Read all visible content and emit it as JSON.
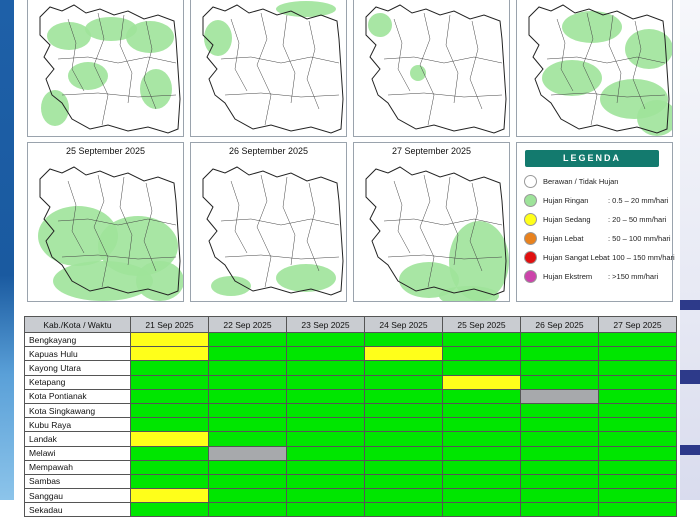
{
  "colors": {
    "ringan": "#00e600",
    "sedang": "#ffff1a",
    "lebat": "#e8821e",
    "sangat_lebat": "#e01010",
    "ekstrem": "#cc44aa",
    "berawan": "#a7a9ac",
    "legend_header": "#137a6e"
  },
  "maps": [
    {
      "title": ""
    },
    {
      "title": ""
    },
    {
      "title": ""
    },
    {
      "title": ""
    },
    {
      "title": "25 September 2025"
    },
    {
      "title": "26 September 2025"
    },
    {
      "title": "27 September 2025"
    }
  ],
  "legend": {
    "title": "LEGENDA",
    "items": [
      {
        "label": "Berawan / Tidak Hujan",
        "range": "",
        "icon": "circle-white"
      },
      {
        "label": "Hujan Ringan",
        "range": ": 0.5 – 20 mm/hari",
        "icon": "circle-light-green"
      },
      {
        "label": "Hujan Sedang",
        "range": ": 20 – 50 mm/hari",
        "icon": "circle-yellow"
      },
      {
        "label": "Hujan Lebat",
        "range": ": 50 – 100 mm/hari",
        "icon": "circle-orange"
      },
      {
        "label": "Hujan Sangat Lebat",
        "range": ": 100 – 150 mm/hari",
        "icon": "circle-red"
      },
      {
        "label": "Hujan Ekstrem",
        "range": ": >150 mm/hari",
        "icon": "circle-magenta"
      }
    ]
  },
  "table": {
    "header_label": "Kab./Kota / Waktu",
    "dates": [
      "21 Sep 2025",
      "22 Sep 2025",
      "23 Sep 2025",
      "24 Sep 2025",
      "25 Sep 2025",
      "26 Sep 2025",
      "27 Sep 2025"
    ],
    "rows": [
      {
        "name": "Bengkayang",
        "cells": [
          "sedang",
          "ringan",
          "ringan",
          "ringan",
          "ringan",
          "ringan",
          "ringan"
        ]
      },
      {
        "name": "Kapuas Hulu",
        "cells": [
          "sedang",
          "ringan",
          "ringan",
          "sedang",
          "ringan",
          "ringan",
          "ringan"
        ]
      },
      {
        "name": "Kayong Utara",
        "cells": [
          "ringan",
          "ringan",
          "ringan",
          "ringan",
          "ringan",
          "ringan",
          "ringan"
        ]
      },
      {
        "name": "Ketapang",
        "cells": [
          "ringan",
          "ringan",
          "ringan",
          "ringan",
          "sedang",
          "ringan",
          "ringan"
        ]
      },
      {
        "name": "Kota Pontianak",
        "cells": [
          "ringan",
          "ringan",
          "ringan",
          "ringan",
          "ringan",
          "berawan",
          "ringan"
        ]
      },
      {
        "name": "Kota Singkawang",
        "cells": [
          "ringan",
          "ringan",
          "ringan",
          "ringan",
          "ringan",
          "ringan",
          "ringan"
        ]
      },
      {
        "name": "Kubu Raya",
        "cells": [
          "ringan",
          "ringan",
          "ringan",
          "ringan",
          "ringan",
          "ringan",
          "ringan"
        ]
      },
      {
        "name": "Landak",
        "cells": [
          "sedang",
          "ringan",
          "ringan",
          "ringan",
          "ringan",
          "ringan",
          "ringan"
        ]
      },
      {
        "name": "Melawi",
        "cells": [
          "ringan",
          "berawan",
          "ringan",
          "ringan",
          "ringan",
          "ringan",
          "ringan"
        ]
      },
      {
        "name": "Mempawah",
        "cells": [
          "ringan",
          "ringan",
          "ringan",
          "ringan",
          "ringan",
          "ringan",
          "ringan"
        ]
      },
      {
        "name": "Sambas",
        "cells": [
          "ringan",
          "ringan",
          "ringan",
          "ringan",
          "ringan",
          "ringan",
          "ringan"
        ]
      },
      {
        "name": "Sanggau",
        "cells": [
          "sedang",
          "ringan",
          "ringan",
          "ringan",
          "ringan",
          "ringan",
          "ringan"
        ]
      },
      {
        "name": "Sekadau",
        "cells": [
          "ringan",
          "ringan",
          "ringan",
          "ringan",
          "ringan",
          "ringan",
          "ringan"
        ]
      }
    ]
  }
}
